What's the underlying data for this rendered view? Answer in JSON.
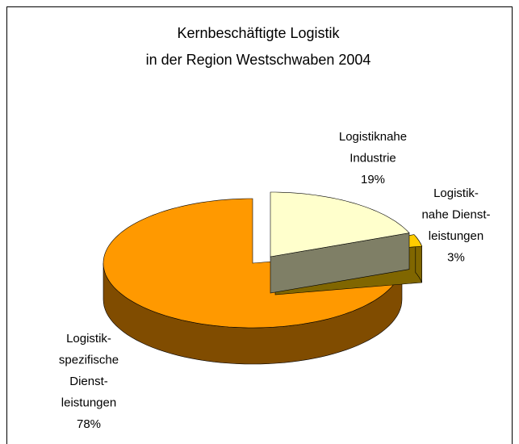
{
  "chart_data": {
    "type": "pie",
    "title": [
      "Kernbeschäftigte Logistik",
      "in der Region Westschwaben 2004"
    ],
    "categories": [
      [
        "Logistiknahe",
        "Industrie"
      ],
      [
        "Logistik-",
        "nahe Dienst-",
        "leistungen"
      ],
      [
        "Logistik-",
        "spezifische",
        "Dienst-",
        "leistungen"
      ]
    ],
    "values": [
      19,
      3,
      78
    ],
    "value_labels": [
      "19%",
      "3%",
      "78%"
    ],
    "colors": [
      "#ffffcc",
      "#ffcc00",
      "#ff9900"
    ],
    "side_colors": [
      "#7f7f66",
      "#806600",
      "#804c00"
    ]
  }
}
